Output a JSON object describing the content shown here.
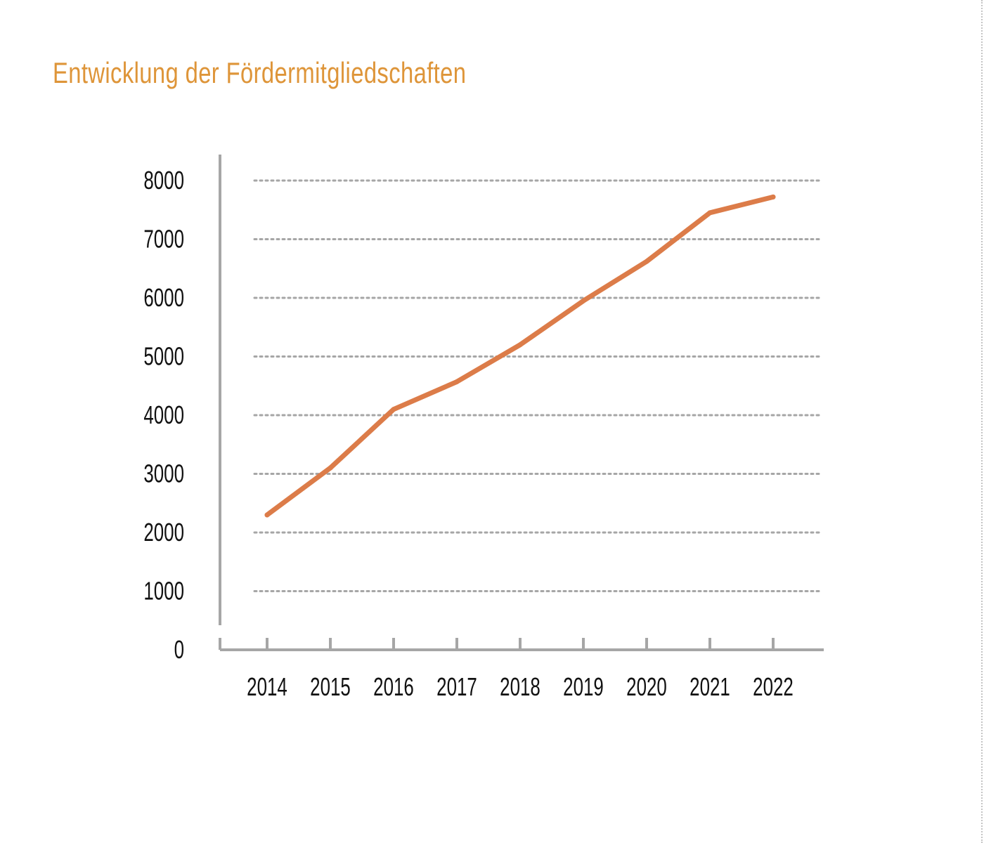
{
  "colors": {
    "title": "#de9539",
    "line": "#dc7c49",
    "axis": "#a6a6a6",
    "grid": "#a6a6a6",
    "text": "#111111"
  },
  "chart_data": {
    "type": "line",
    "title": "Entwicklung der Fördermitgliedschaften",
    "xlabel": "",
    "ylabel": "",
    "x": [
      "2014",
      "2015",
      "2016",
      "2017",
      "2018",
      "2019",
      "2020",
      "2021",
      "2022"
    ],
    "series": [
      {
        "values": [
          2300,
          3100,
          4100,
          4570,
          5200,
          5950,
          6620,
          7450,
          7720
        ]
      }
    ],
    "ylim": [
      0,
      8000
    ],
    "yticks": [
      0,
      1000,
      2000,
      3000,
      4000,
      5000,
      6000,
      7000,
      8000
    ],
    "grid": "horizontal dotted",
    "legend": "none"
  }
}
